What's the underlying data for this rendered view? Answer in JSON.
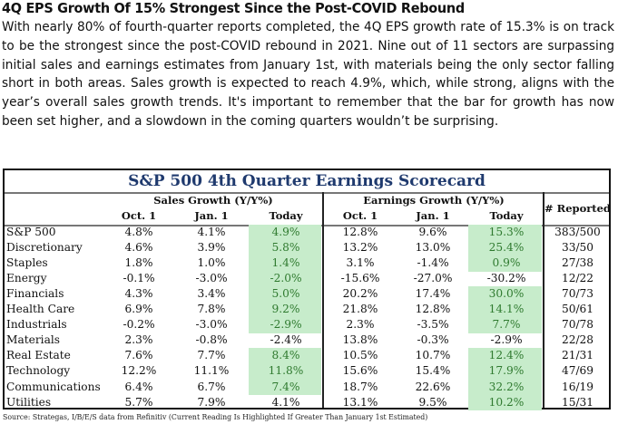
{
  "article": {
    "headline": "4Q EPS Growth Of 15% Strongest Since the Post-COVID Rebound",
    "body": "With nearly 80% of fourth-quarter reports completed, the 4Q EPS growth rate of 15.3% is on track to be the strongest since the post-COVID rebound in 2021. Nine out of 11 sectors are surpassing initial sales and earnings estimates from January 1st, with materials being the only sector falling short in both areas. Sales growth is expected to reach 4.9%, which, while strong, aligns with the year’s overall sales growth trends. It's important to remember that the bar for growth has now been set higher, and a slowdown in the coming quarters wouldn’t be surprising."
  },
  "scorecard": {
    "title": "S&P 500 4th Quarter Earnings Scorecard",
    "highlight_color": "#c7eccb",
    "highlight_text_color": "#2f7a2f",
    "title_color": "#1f3a6e",
    "groups": {
      "sales": "Sales Growth (Y/Y%)",
      "earnings": "Earnings Growth (Y/Y%)",
      "reported": "# Reported"
    },
    "columns": {
      "sales": [
        "Oct. 1",
        "Jan. 1",
        "Today"
      ],
      "earnings": [
        "Oct. 1",
        "Jan. 1",
        "Today"
      ]
    },
    "rows": [
      {
        "sector": "S&P 500",
        "sales": [
          "4.8%",
          "4.1%",
          "4.9%"
        ],
        "sales_hl": true,
        "earnings": [
          "12.8%",
          "9.6%",
          "15.3%"
        ],
        "earnings_hl": true,
        "reported": "383/500"
      },
      {
        "sector": "Discretionary",
        "sales": [
          "4.6%",
          "3.9%",
          "5.8%"
        ],
        "sales_hl": true,
        "earnings": [
          "13.2%",
          "13.0%",
          "25.4%"
        ],
        "earnings_hl": true,
        "reported": "33/50"
      },
      {
        "sector": "Staples",
        "sales": [
          "1.8%",
          "1.0%",
          "1.4%"
        ],
        "sales_hl": true,
        "earnings": [
          "3.1%",
          "-1.4%",
          "0.9%"
        ],
        "earnings_hl": true,
        "reported": "27/38"
      },
      {
        "sector": "Energy",
        "sales": [
          "-0.1%",
          "-3.0%",
          "-2.0%"
        ],
        "sales_hl": true,
        "earnings": [
          "-15.6%",
          "-27.0%",
          "-30.2%"
        ],
        "earnings_hl": false,
        "reported": "12/22"
      },
      {
        "sector": "Financials",
        "sales": [
          "4.3%",
          "3.4%",
          "5.0%"
        ],
        "sales_hl": true,
        "earnings": [
          "20.2%",
          "17.4%",
          "30.0%"
        ],
        "earnings_hl": true,
        "reported": "70/73"
      },
      {
        "sector": "Health Care",
        "sales": [
          "6.9%",
          "7.8%",
          "9.2%"
        ],
        "sales_hl": true,
        "earnings": [
          "21.8%",
          "12.8%",
          "14.1%"
        ],
        "earnings_hl": true,
        "reported": "50/61"
      },
      {
        "sector": "Industrials",
        "sales": [
          "-0.2%",
          "-3.0%",
          "-2.9%"
        ],
        "sales_hl": true,
        "earnings": [
          "2.3%",
          "-3.5%",
          "7.7%"
        ],
        "earnings_hl": true,
        "reported": "70/78"
      },
      {
        "sector": "Materials",
        "sales": [
          "2.3%",
          "-0.8%",
          "-2.4%"
        ],
        "sales_hl": false,
        "earnings": [
          "13.8%",
          "-0.3%",
          "-2.9%"
        ],
        "earnings_hl": false,
        "reported": "22/28"
      },
      {
        "sector": "Real Estate",
        "sales": [
          "7.6%",
          "7.7%",
          "8.4%"
        ],
        "sales_hl": true,
        "earnings": [
          "10.5%",
          "10.7%",
          "12.4%"
        ],
        "earnings_hl": true,
        "reported": "21/31"
      },
      {
        "sector": "Technology",
        "sales": [
          "12.2%",
          "11.1%",
          "11.8%"
        ],
        "sales_hl": true,
        "earnings": [
          "15.6%",
          "15.4%",
          "17.9%"
        ],
        "earnings_hl": true,
        "reported": "47/69"
      },
      {
        "sector": "Communications",
        "sales": [
          "6.4%",
          "6.7%",
          "7.4%"
        ],
        "sales_hl": true,
        "earnings": [
          "18.7%",
          "22.6%",
          "32.2%"
        ],
        "earnings_hl": true,
        "reported": "16/19"
      },
      {
        "sector": "Utilities",
        "sales": [
          "5.7%",
          "7.9%",
          "4.1%"
        ],
        "sales_hl": false,
        "earnings": [
          "13.1%",
          "9.5%",
          "10.2%"
        ],
        "earnings_hl": true,
        "reported": "15/31"
      }
    ],
    "source": "Source: Strategas, I/B/E/S data from Refinitiv  (Current Reading Is Highlighted If Greater Than January 1st Estimated)"
  }
}
